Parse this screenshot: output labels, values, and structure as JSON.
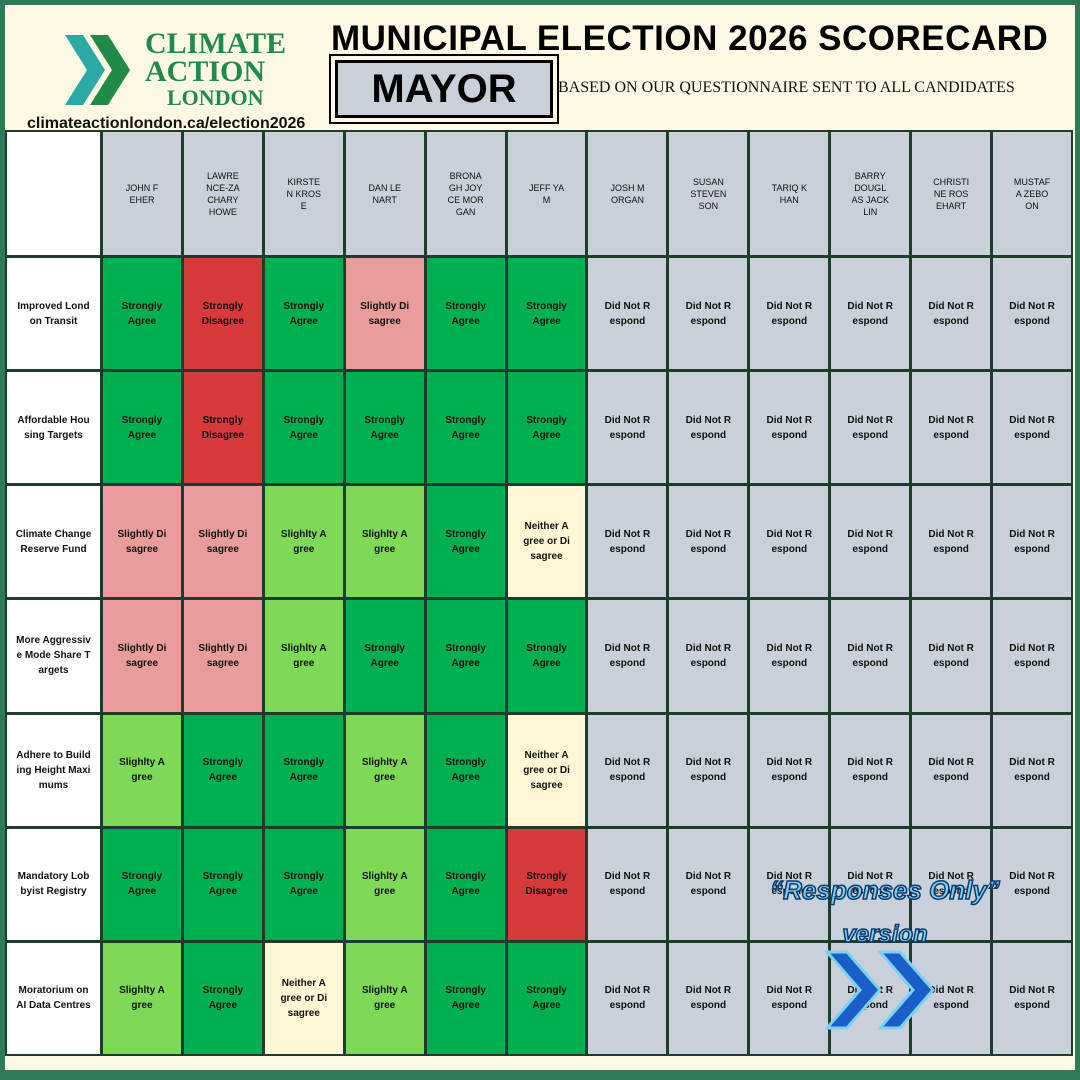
{
  "header": {
    "logo": [
      "CLIMATE",
      "ACTION",
      "LONDON"
    ],
    "url": "climateactionlondon.ca/election2026",
    "title": "MUNICIPAL ELECTION 2026 SCORECARD",
    "badge": "MAYOR",
    "subtitle": "BASED ON OUR QUESTIONNAIRE SENT TO ALL CANDIDATES"
  },
  "table": {
    "candidates": [
      "JOHN FEHER",
      "LAWRENCE-ZACHARY HOWE",
      "KIRSTEN KROSE",
      "DAN LENART",
      "BRONAGH JOYCE MORGAN",
      "JEFF YAM",
      "JOSH MORGAN",
      "SUSAN STEVENSON",
      "TARIQ KHAN",
      "BARRY DOUGLAS JACKLIN",
      "CHRISTINE ROSEHART",
      "MUSTAFA ZEBOON"
    ],
    "rows": [
      {
        "label": "Improved London Transit",
        "responses": [
          "Strongly Agree",
          "Strongly Disagree",
          "Strongly Agree",
          "Slightly Disagree",
          "Strongly Agree",
          "Strongly Agree",
          "Did Not Respond",
          "Did Not Respond",
          "Did Not Respond",
          "Did Not Respond",
          "Did Not Respond",
          "Did Not Respond"
        ]
      },
      {
        "label": "Affordable Housing Targets",
        "responses": [
          "Strongly Agree",
          "Strongly Disagree",
          "Strongly Agree",
          "Strongly Agree",
          "Strongly Agree",
          "Strongly Agree",
          "Did Not Respond",
          "Did Not Respond",
          "Did Not Respond",
          "Did Not Respond",
          "Did Not Respond",
          "Did Not Respond"
        ]
      },
      {
        "label": "Climate Change Reserve Fund",
        "responses": [
          "Slightly Disagree",
          "Slightly Disagree",
          "Slighlty Agree",
          "Slighlty Agree",
          "Strongly Agree",
          "Neither Agree or Disagree",
          "Did Not Respond",
          "Did Not Respond",
          "Did Not Respond",
          "Did Not Respond",
          "Did Not Respond",
          "Did Not Respond"
        ]
      },
      {
        "label": "More Aggressive Mode Share Targets",
        "responses": [
          "Slightly Disagree",
          "Slightly Disagree",
          "Slighlty Agree",
          "Strongly Agree",
          "Strongly Agree",
          "Strongly Agree",
          "Did Not Respond",
          "Did Not Respond",
          "Did Not Respond",
          "Did Not Respond",
          "Did Not Respond",
          "Did Not Respond"
        ]
      },
      {
        "label": "Adhere to Building Height Maximums",
        "responses": [
          "Slighlty Agree",
          "Strongly Agree",
          "Strongly Agree",
          "Slighlty Agree",
          "Strongly Agree",
          "Neither Agree or Disagree",
          "Did Not Respond",
          "Did Not Respond",
          "Did Not Respond",
          "Did Not Respond",
          "Did Not Respond",
          "Did Not Respond"
        ]
      },
      {
        "label": "Mandatory Lobbyist Registry",
        "responses": [
          "Strongly Agree",
          "Strongly Agree",
          "Strongly Agree",
          "Slighlty Agree",
          "Strongly Agree",
          "Strongly Disagree",
          "Did Not Respond",
          "Did Not Respond",
          "Did Not Respond",
          "Did Not Respond",
          "Did Not Respond",
          "Did Not Respond"
        ]
      },
      {
        "label": "Moratorium on AI Data Centres",
        "responses": [
          "Slighlty Agree",
          "Strongly Agree",
          "Neither Agree or Disagree",
          "Slighlty Agree",
          "Strongly Agree",
          "Strongly Agree",
          "Did Not Respond",
          "Did Not Respond",
          "Did Not Respond",
          "Did Not Respond",
          "Did Not Respond",
          "Did Not Respond"
        ]
      }
    ],
    "colors": {
      "Strongly Agree": "#00b050",
      "Strongly Disagree": "#d63a3a",
      "Slightly Disagree": "#e89c9c",
      "Slighlty Agree": "#7ed957",
      "Neither Agree or Disagree": "#fff6d5",
      "Did Not Respond": "#c9d0d9"
    }
  },
  "overlay": {
    "line1": "“Responses Only”",
    "line2": "version"
  }
}
